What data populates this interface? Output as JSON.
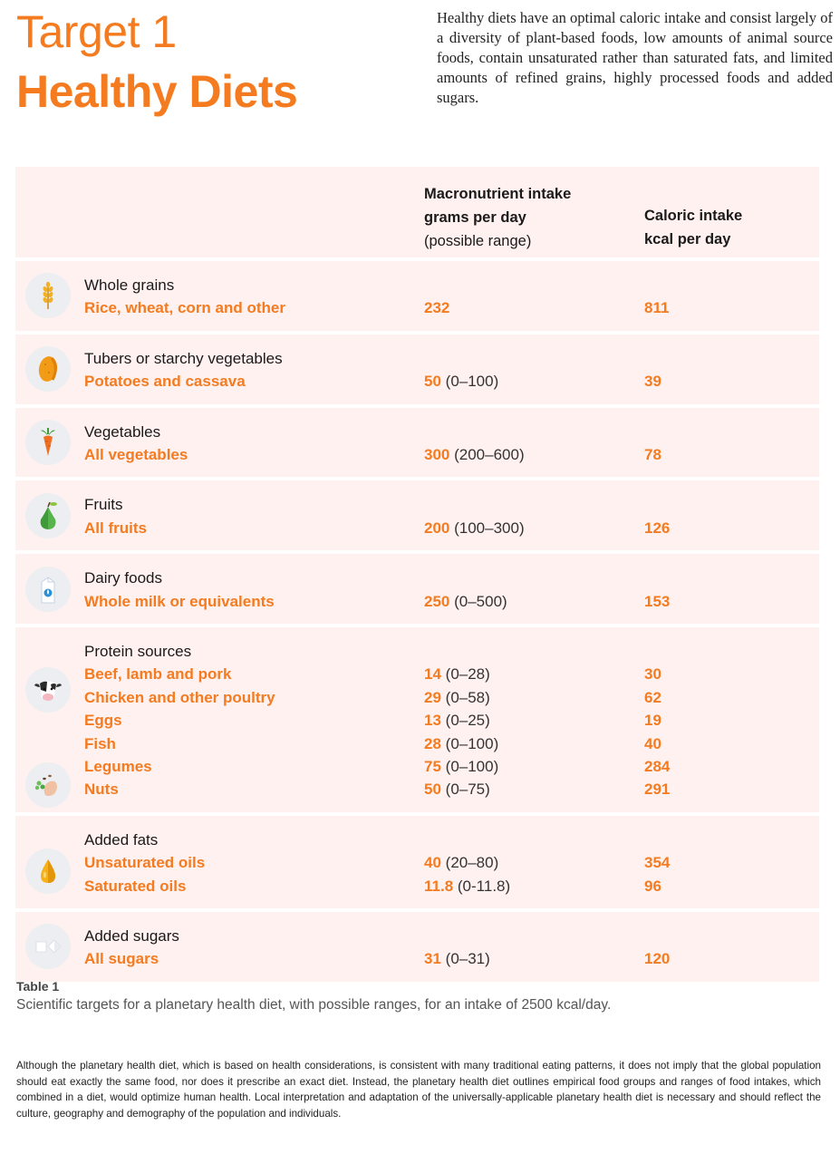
{
  "header": {
    "title_line1": "Target 1",
    "title_line2": "Healthy Diets",
    "intro": "Healthy diets have an optimal caloric intake and consist largely of a diversity of plant-based foods, low amounts of animal source foods, contain unsaturated rather than saturated fats, and limited amounts of refined grains, highly processed foods and added sugars."
  },
  "table": {
    "col_macro_line1": "Macronutrient intake",
    "col_macro_line2": "grams per day",
    "col_macro_line3": "(possible range)",
    "col_cal_line1": "Caloric intake",
    "col_cal_line2": "kcal per day",
    "groups": [
      {
        "category": "Whole grains",
        "icon": "wheat-icon",
        "items": [
          {
            "name": "Rice, wheat, corn and other",
            "value": "232",
            "range": "",
            "kcal": "811"
          }
        ]
      },
      {
        "category": "Tubers or starchy vegetables",
        "icon": "potato-icon",
        "items": [
          {
            "name": "Potatoes and cassava",
            "value": "50",
            "range": "(0–100)",
            "kcal": "39"
          }
        ]
      },
      {
        "category": "Vegetables",
        "icon": "carrot-icon",
        "items": [
          {
            "name": "All vegetables",
            "value": "300",
            "range": "(200–600)",
            "kcal": "78"
          }
        ]
      },
      {
        "category": "Fruits",
        "icon": "pear-icon",
        "items": [
          {
            "name": "All fruits",
            "value": "200",
            "range": "(100–300)",
            "kcal": "126"
          }
        ]
      },
      {
        "category": "Dairy foods",
        "icon": "milk-carton-icon",
        "items": [
          {
            "name": "Whole milk or equivalents",
            "value": "250",
            "range": "(0–500)",
            "kcal": "153"
          }
        ]
      },
      {
        "category": "Protein sources",
        "icon": "cow-icon",
        "icon2": "legumes-icon",
        "items": [
          {
            "name": "Beef, lamb and pork",
            "value": "14",
            "range": "(0–28)",
            "kcal": "30"
          },
          {
            "name": "Chicken and other poultry",
            "value": "29",
            "range": "(0–58)",
            "kcal": "62"
          },
          {
            "name": "Eggs",
            "value": "13",
            "range": "(0–25)",
            "kcal": "19"
          },
          {
            "name": "Fish",
            "value": "28",
            "range": "(0–100)",
            "kcal": "40"
          },
          {
            "name": "Legumes",
            "value": "75",
            "range": "(0–100)",
            "kcal": "284"
          },
          {
            "name": "Nuts",
            "value": "50",
            "range": "(0–75)",
            "kcal": "291"
          }
        ]
      },
      {
        "category": "Added fats",
        "icon": "oil-drop-icon",
        "items": [
          {
            "name": "Unsaturated oils",
            "value": "40",
            "range": "(20–80)",
            "kcal": "354"
          },
          {
            "name": "Saturated oils",
            "value": "11.8",
            "range": "(0-11.8)",
            "kcal": "96"
          }
        ]
      },
      {
        "category": "Added sugars",
        "icon": "sugar-cube-icon",
        "items": [
          {
            "name": "All sugars",
            "value": "31",
            "range": "(0–31)",
            "kcal": "120"
          }
        ]
      }
    ]
  },
  "caption": {
    "label": "Table 1",
    "text": "Scientific targets for a planetary health diet, with possible ranges, for an intake of 2500 kcal/day."
  },
  "footnote": "Although the planetary health diet, which is based on health considerations, is consistent with many traditional eating patterns, it does not imply that the global population should eat exactly the same food, nor does it prescribe an exact diet. Instead, the planetary health diet outlines empirical food groups and ranges of food intakes, which combined in a diet, would optimize human health. Local interpretation and adaptation of the universally-applicable planetary health diet is necessary and should reflect the culture, geography and demography of the population and individuals.",
  "colors": {
    "accent": "#f47b20",
    "row_bg": "#fef1f0",
    "icon_bg": "#eceef1"
  }
}
